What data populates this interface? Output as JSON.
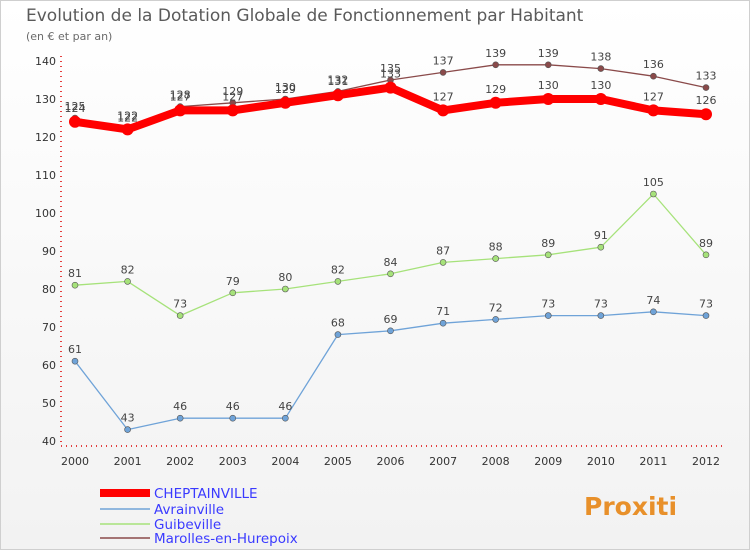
{
  "chart_data": {
    "type": "line",
    "title": "Evolution de la Dotation Globale de Fonctionnement par Habitant",
    "subtitle": "(en € et par an)",
    "xlabel": "",
    "ylabel": "",
    "x": [
      "2000",
      "2001",
      "2002",
      "2003",
      "2004",
      "2005",
      "2006",
      "2007",
      "2008",
      "2009",
      "2010",
      "2011",
      "2012"
    ],
    "ylim": [
      40,
      140
    ],
    "yticks": [
      40,
      50,
      60,
      70,
      80,
      90,
      100,
      110,
      120,
      130,
      140
    ],
    "grid": false,
    "legend_position": "bottom-left",
    "series": [
      {
        "name": "CHEPTAINVILLE",
        "color": "#ff0000",
        "values": [
          124,
          122,
          127,
          127,
          129,
          131,
          133,
          127,
          129,
          130,
          130,
          127,
          126
        ]
      },
      {
        "name": "Avrainville",
        "color": "#6fa3d8",
        "values": [
          61,
          43,
          46,
          46,
          46,
          68,
          69,
          71,
          72,
          73,
          73,
          74,
          73
        ]
      },
      {
        "name": "Guibeville",
        "color": "#a6e27a",
        "values": [
          81,
          82,
          73,
          79,
          80,
          82,
          84,
          87,
          88,
          89,
          91,
          105,
          89
        ]
      },
      {
        "name": "Marolles-en-Hurepoix",
        "color": "#8a4a4a",
        "values": [
          125,
          122,
          128,
          129,
          130,
          132,
          135,
          137,
          139,
          139,
          138,
          136,
          133
        ]
      }
    ]
  },
  "logo": {
    "text": "Proxiti"
  }
}
